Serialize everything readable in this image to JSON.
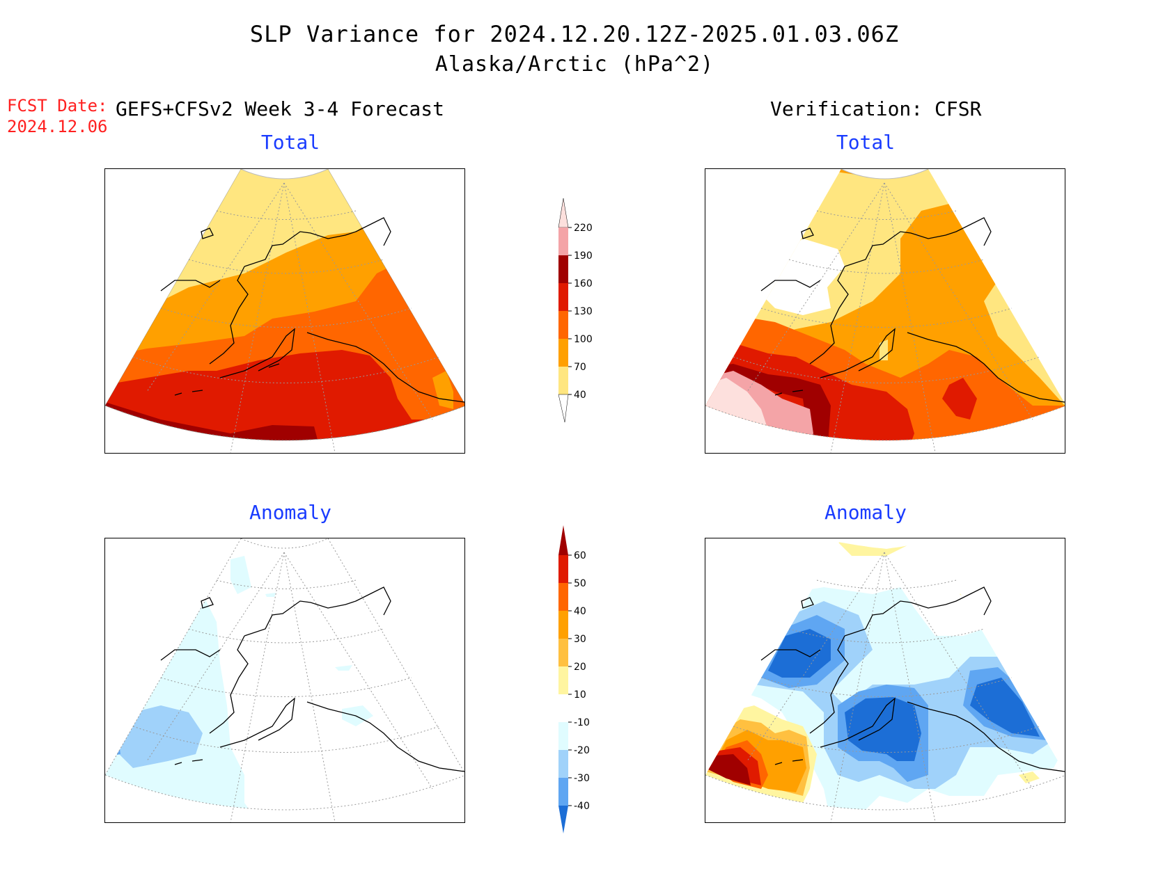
{
  "title": {
    "line1": "SLP Variance for 2024.12.20.12Z-2025.01.03.06Z",
    "line2": "Alaska/Arctic (hPa^2)"
  },
  "forecast_date": {
    "label": "FCST Date:",
    "value": "2024.12.06"
  },
  "columns": {
    "left": "GEFS+CFSv2 Week 3-4 Forecast",
    "right": "Verification: CFSR"
  },
  "panels": {
    "fcst_total": "Total",
    "verif_total": "Total",
    "fcst_anomaly": "Anomaly",
    "verif_anomaly": "Anomaly"
  },
  "colorbars": {
    "total": {
      "labels": [
        "220",
        "190",
        "160",
        "130",
        "100",
        "70",
        "40"
      ],
      "colors": [
        "#fde0dd",
        "#f4a4a7",
        "#a00000",
        "#e01a00",
        "#ff6600",
        "#ffa000",
        "#ffe680"
      ]
    },
    "anomaly": {
      "labels": [
        "60",
        "50",
        "40",
        "30",
        "20",
        "10",
        "-10",
        "-20",
        "-30",
        "-40"
      ],
      "colors": [
        "#a00000",
        "#e01a00",
        "#ff6600",
        "#ffa000",
        "#ffc040",
        "#fff5a0",
        "#ffffff",
        "#e0fcff",
        "#a0d2fa",
        "#5fa6f2",
        "#1c6ed6"
      ]
    }
  }
}
